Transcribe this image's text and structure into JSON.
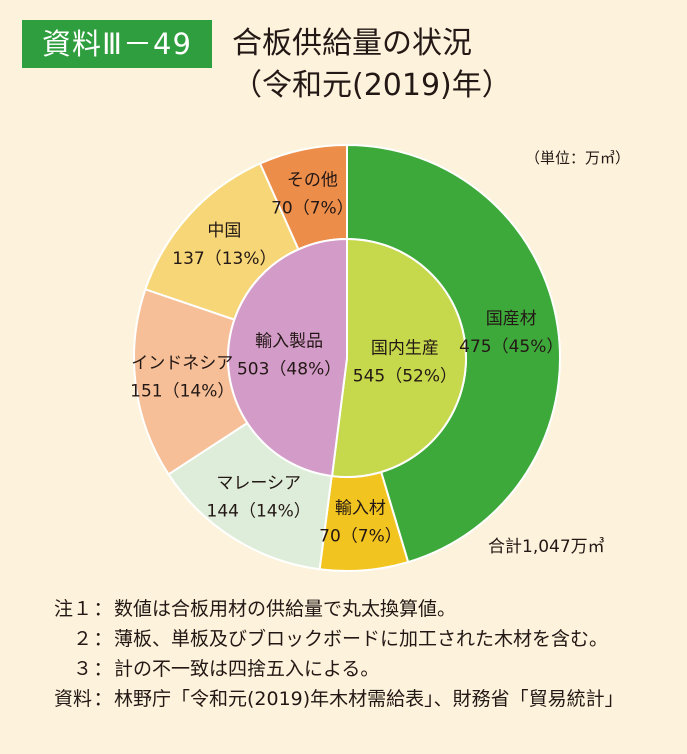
{
  "header": {
    "badge": "資料Ⅲ－49",
    "title_line1": "合板供給量の状況",
    "title_line2": "（令和元(2019)年）"
  },
  "chart_data": {
    "type": "pie",
    "unit_label": "（単位：万㎥）",
    "total_label": "合計1,047万㎥",
    "inner": [
      {
        "name": "国内生産",
        "value": 545,
        "percent": 52,
        "color": "#c6d84b"
      },
      {
        "name": "輸入製品",
        "value": 503,
        "percent": 48,
        "color": "#d39bc8"
      }
    ],
    "outer": [
      {
        "name": "国産材",
        "value": 475,
        "percent": 45,
        "color": "#3ea93b"
      },
      {
        "name": "輸入材",
        "value": 70,
        "percent": 7,
        "color": "#f2c41f"
      },
      {
        "name": "マレーシア",
        "value": 144,
        "percent": 14,
        "color": "#deedd9"
      },
      {
        "name": "インドネシア",
        "value": 151,
        "percent": 14,
        "color": "#f6bf97"
      },
      {
        "name": "中国",
        "value": 137,
        "percent": 13,
        "color": "#f6d677"
      },
      {
        "name": "その他",
        "value": 70,
        "percent": 7,
        "color": "#ec8d4a"
      }
    ]
  },
  "notes": [
    {
      "key": "注１",
      "sep": "：",
      "text": "数値は合板用材の供給量で丸太換算値。"
    },
    {
      "key": "２",
      "sep": "：",
      "text": "薄板、単板及びブロックボードに加工された木材を含む。"
    },
    {
      "key": "３",
      "sep": "：",
      "text": "計の不一致は四捨五入による。"
    },
    {
      "key": "資料",
      "sep": "：",
      "text": "林野庁「令和元(2019)年木材需給表」、財務省「貿易統計」"
    }
  ]
}
